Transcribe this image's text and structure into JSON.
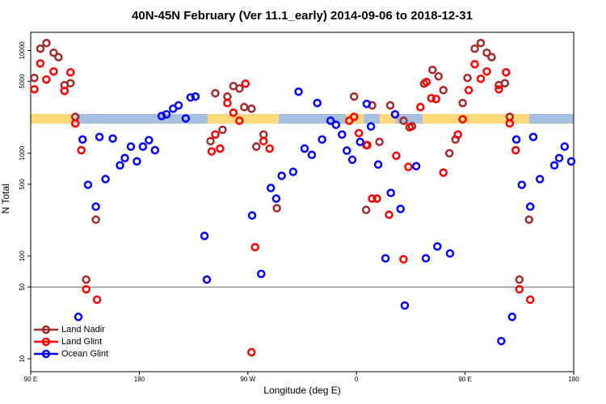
{
  "chart_data": {
    "type": "scatter",
    "title": "40N-45N February (Ver 11.1_early)   2014-09-06 to 2018-12-31",
    "x_label": "Longitude (deg E)",
    "y_label": "N Total",
    "xlim": [
      90,
      540
    ],
    "xticks": [
      {
        "value": 90,
        "label": "90 E"
      },
      180,
      {
        "value": 270,
        "label": "90 W"
      },
      {
        "value": 360,
        "label": "0"
      },
      {
        "value": 450,
        "label": "90 E"
      },
      {
        "value": 540,
        "label": "180"
      }
    ],
    "ylim": [
      7.5,
      15000
    ],
    "yticks": [
      10,
      50,
      100,
      500,
      1000,
      5000,
      10000
    ],
    "log_y": true,
    "hline": 50,
    "legend": "lower left",
    "series": [
      {
        "name": "Land Nadir",
        "color": "#a52a2a",
        "x": [
          93,
          98,
          103,
          109,
          113,
          118,
          123,
          127,
          136,
          144,
          239,
          243,
          249,
          253,
          258,
          263,
          267,
          273,
          277,
          283,
          294,
          358,
          368,
          373,
          379,
          388,
          368,
          399,
          406,
          416,
          423,
          428,
          432,
          437,
          442,
          448,
          452,
          458,
          463,
          468,
          472,
          478,
          483,
          487,
          495,
          503
        ],
        "values": [
          5400,
          10400,
          11800,
          9500,
          8600,
          4600,
          4800,
          2260,
          59,
          226,
          1310,
          3830,
          1690,
          3560,
          4500,
          4260,
          2810,
          2710,
          1160,
          1520,
          292,
          3560,
          1200,
          2920,
          1290,
          2920,
          281,
          2070,
          1830,
          4750,
          6470,
          5600,
          4110,
          1000,
          1360,
          3080,
          5400,
          10400,
          11800,
          9500,
          8600,
          4600,
          4800,
          2260,
          59,
          226
        ]
      },
      {
        "name": "Land Glint",
        "color": "#ff0000",
        "x": [
          93,
          98,
          103,
          109,
          118,
          123,
          127,
          132,
          136,
          145,
          240,
          243,
          247,
          253,
          258,
          263,
          268,
          276,
          273,
          283,
          288,
          354,
          358,
          362,
          369,
          373,
          377,
          387,
          393,
          399,
          403,
          404,
          413,
          418,
          422,
          426,
          432,
          444,
          448,
          453,
          458,
          463,
          468,
          478,
          484,
          487,
          492,
          495,
          504
        ],
        "values": [
          4190,
          7480,
          5210,
          6240,
          4040,
          6120,
          1950,
          1070,
          47.5,
          37.6,
          1040,
          1520,
          1110,
          3080,
          2480,
          2070,
          4750,
          122,
          11.6,
          1310,
          1110,
          2070,
          2260,
          1570,
          1200,
          362,
          362,
          252,
          946,
          93,
          735,
          1790,
          2810,
          4930,
          3430,
          3370,
          648,
          1520,
          2140,
          4110,
          7340,
          5300,
          6240,
          4190,
          6120,
          1950,
          1070,
          47.5,
          37.6
        ]
      },
      {
        "name": "Ocean Glint",
        "color": "#0000ff",
        "x": [
          129.5,
          133,
          137.5,
          144,
          147,
          152,
          158,
          164,
          168,
          173,
          178,
          183,
          188,
          193,
          198.5,
          202.5,
          208,
          212.5,
          218.5,
          222.5,
          226.5,
          234,
          236,
          273.5,
          281,
          289,
          293.5,
          298,
          307.5,
          312,
          317,
          323,
          327.5,
          331.5,
          338.5,
          343,
          348,
          352,
          356.5,
          363,
          368.5,
          372,
          378,
          384,
          388.5,
          392,
          396.5,
          400,
          409.5,
          417.5,
          427,
          437.5,
          480,
          489,
          492.5,
          497,
          504,
          506.5,
          512,
          524,
          528,
          532.5,
          538
        ],
        "values": [
          25.6,
          1360,
          493,
          302,
          1440,
          560,
          1390,
          762,
          897,
          1160,
          833,
          1160,
          1340,
          1070,
          2300,
          2390,
          2710,
          2920,
          2180,
          3490,
          3560,
          157,
          59,
          248,
          67,
          459,
          362,
          603,
          659,
          3970,
          1110,
          964,
          3080,
          1360,
          2070,
          1890,
          1520,
          1060,
          865,
          1290,
          3020,
          1820,
          776,
          95,
          411,
          2390,
          287,
          33,
          748,
          95,
          124,
          106,
          14.9,
          25.6,
          1360,
          493,
          302,
          1440,
          560,
          762,
          897,
          1160,
          833
        ]
      }
    ]
  }
}
